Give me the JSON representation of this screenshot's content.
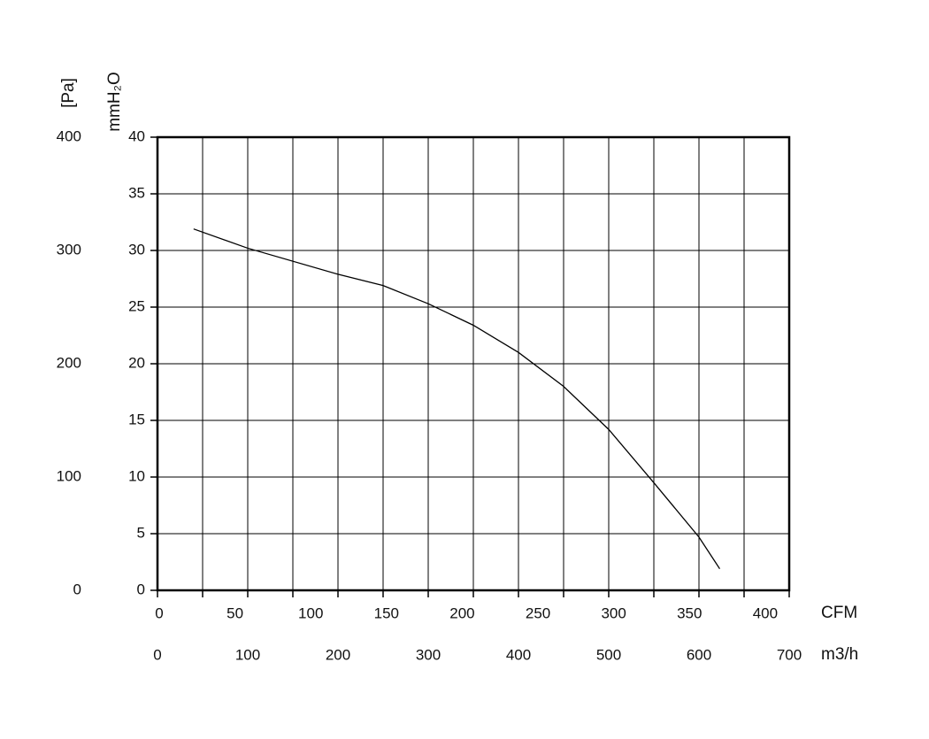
{
  "chart_data": {
    "type": "line",
    "y_label": "mmH₂O",
    "y2_label": "[Pa]",
    "x_label": "m3/h",
    "x2_label": "CFM",
    "x": [
      40,
      100,
      200,
      250,
      300,
      350,
      400,
      450,
      500,
      550,
      600,
      623
    ],
    "series": [
      {
        "color": "#000000",
        "values": [
          31.9,
          30.2,
          27.9,
          26.9,
          25.3,
          23.4,
          21.0,
          18.0,
          14.2,
          9.5,
          4.7,
          1.9
        ]
      }
    ],
    "xlim": [
      0,
      700
    ],
    "xticks": [
      0,
      100,
      200,
      300,
      400,
      500,
      600,
      700
    ],
    "xminorticks": [
      50,
      150,
      250,
      350,
      450,
      550,
      650
    ],
    "x2lim": [
      0,
      417
    ],
    "x2ticks": [
      0,
      50,
      100,
      150,
      200,
      250,
      300,
      350,
      400
    ],
    "ylim": [
      0,
      40
    ],
    "yticks": [
      0,
      5,
      10,
      15,
      20,
      25,
      30,
      35,
      40
    ],
    "y2lim": [
      0,
      400
    ],
    "y2ticks": [
      0,
      100,
      200,
      300,
      400
    ],
    "grid": true
  }
}
